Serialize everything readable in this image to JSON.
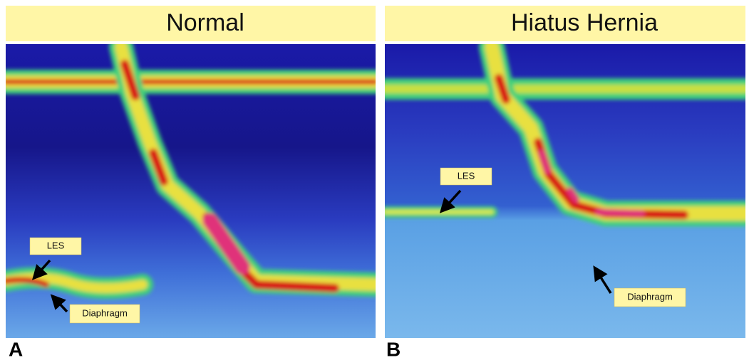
{
  "panels": [
    {
      "title": "Normal",
      "letter": "A",
      "labels": [
        "LES",
        "Diaphragm"
      ]
    },
    {
      "title": "Hiatus Hernia",
      "letter": "B",
      "labels": [
        "LES",
        "Diaphragm"
      ]
    }
  ]
}
